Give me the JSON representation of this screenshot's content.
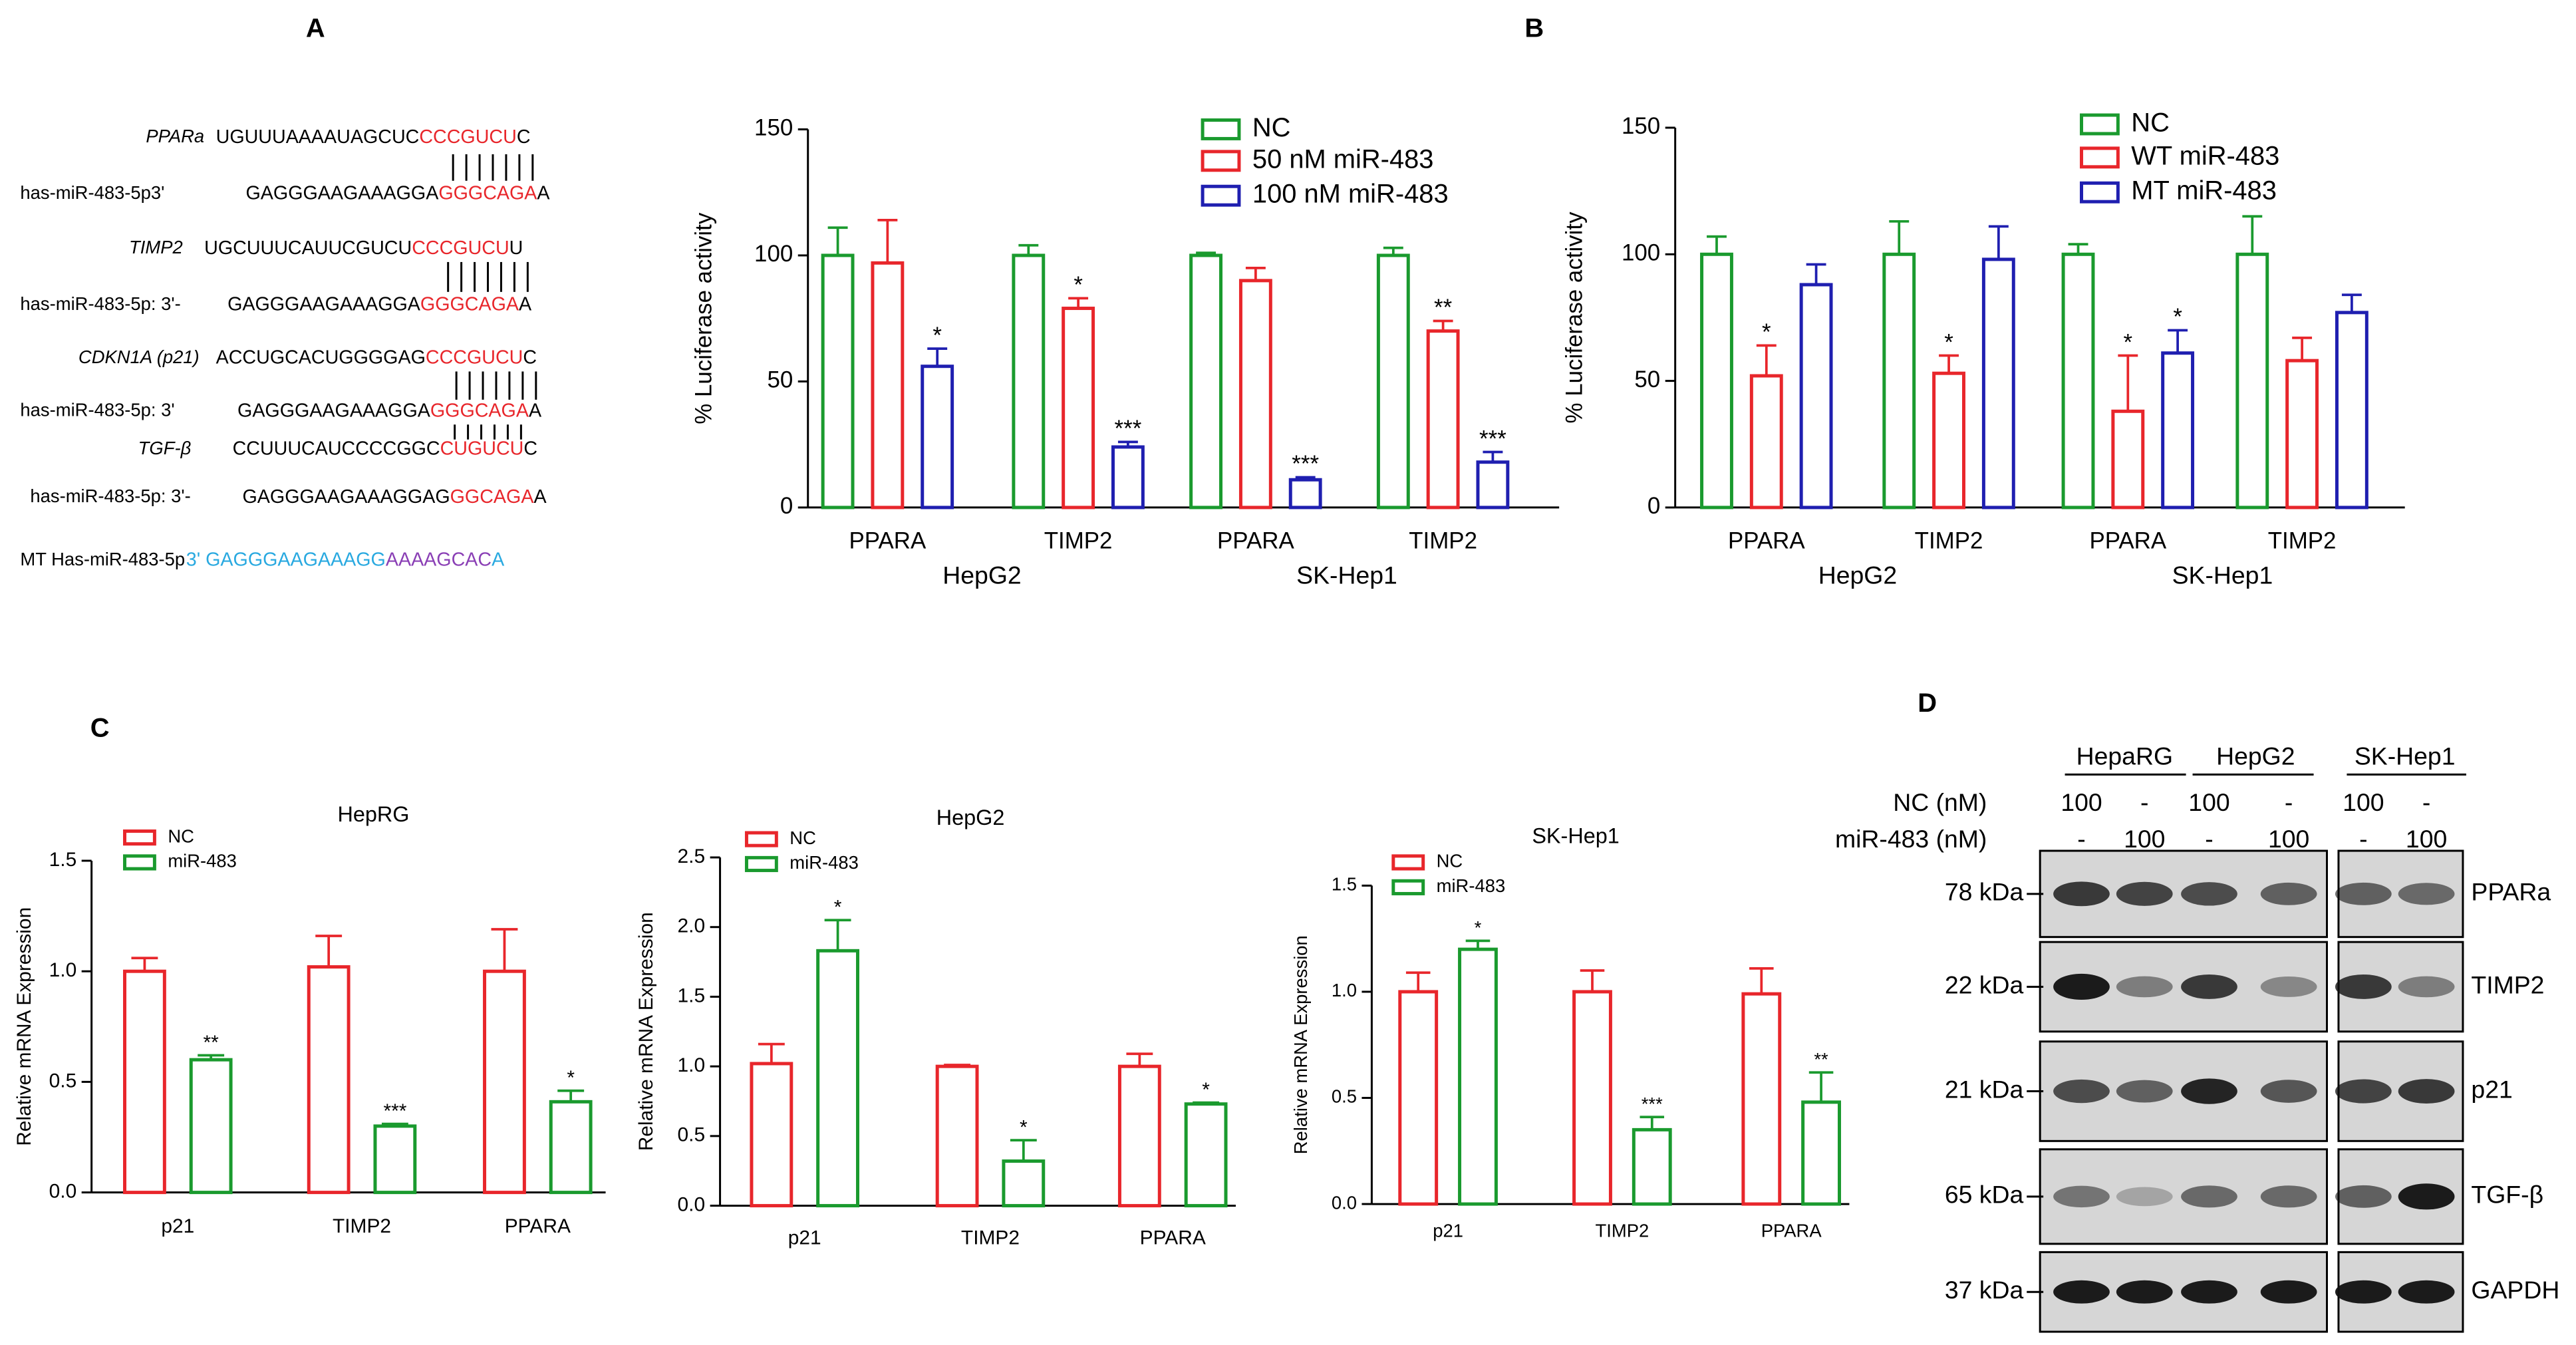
{
  "panel_labels": [
    "A",
    "B",
    "C",
    "D"
  ],
  "sequences": [
    {
      "label": "PPARa",
      "label_color": "#e8262b",
      "segments": [
        {
          "text": "UGUUUAAAAUAGCUC",
          "color": "#000000"
        },
        {
          "text": "CCCGUCU",
          "color": "#e8262b"
        },
        {
          "text": "C",
          "color": "#000000"
        }
      ]
    },
    {
      "label": "has-miR-483-5p3'",
      "label_color": "#000000",
      "segments": [
        {
          "text": "GAGGGAAGAAAGGA",
          "color": "#000000"
        },
        {
          "text": "GGGCAGA",
          "color": "#e8262b"
        },
        {
          "text": "A",
          "color": "#000000"
        }
      ]
    },
    {
      "label": "TIMP2",
      "label_color": "#e8262b",
      "segments": [
        {
          "text": "UGCUUUCAUUCGUCU",
          "color": "#000000"
        },
        {
          "text": "CCCGUCU",
          "color": "#e8262b"
        },
        {
          "text": "U",
          "color": "#000000"
        }
      ]
    },
    {
      "label": "has-miR-483-5p: 3'-",
      "label_color": "#000000",
      "segments": [
        {
          "text": "GAGGGAAGAAAGGA",
          "color": "#000000"
        },
        {
          "text": "GGGCAGA",
          "color": "#e8262b"
        },
        {
          "text": "A",
          "color": "#000000"
        }
      ]
    },
    {
      "label": "CDKN1A (p21)",
      "label_color": "#e8262b",
      "segments": [
        {
          "text": "ACCUGCACUGGGGAG",
          "color": "#000000"
        },
        {
          "text": "CCCGUCU",
          "color": "#e8262b"
        },
        {
          "text": "C",
          "color": "#000000"
        }
      ]
    },
    {
      "label": "has-miR-483-5p: 3'",
      "label_color": "#000000",
      "segments": [
        {
          "text": "GAGGGAAGAAAGGA",
          "color": "#000000"
        },
        {
          "text": "GGGCAGA",
          "color": "#e8262b"
        },
        {
          "text": "A",
          "color": "#000000"
        }
      ]
    },
    {
      "label": "TGF-β",
      "label_color": "#e8262b",
      "segments": [
        {
          "text": "CCUUUCAUCCCCGGC",
          "color": "#000000"
        },
        {
          "text": "CUGUCU",
          "color": "#e8262b"
        },
        {
          "text": "C",
          "color": "#000000"
        }
      ]
    },
    {
      "label": "has-miR-483-5p: 3'-",
      "label_color": "#000000",
      "segments": [
        {
          "text": "GAGGGAAGAAAGGAG",
          "color": "#000000"
        },
        {
          "text": "GGCAGA",
          "color": "#e8262b"
        },
        {
          "text": "A",
          "color": "#000000"
        }
      ]
    },
    {
      "label": "MT  Has-miR-483-5p",
      "label_color": "#29a9e0",
      "segments": [
        {
          "text": "3' GAGGGAAGAAAGG",
          "color": "#29a9e0"
        },
        {
          "text": "AAAAGCAC",
          "color": "#8a3fb5"
        },
        {
          "text": "A",
          "color": "#29a9e0"
        }
      ]
    }
  ],
  "chart_data": [
    {
      "type": "bar",
      "ylabel": "% Luciferase activity",
      "categories": [
        "PPARA",
        "TIMP2",
        "PPARA",
        "TIMP2"
      ],
      "groups": [
        "HepG2",
        "SK-Hep1"
      ],
      "series": [
        {
          "name": "NC",
          "color": "#1a9a2e",
          "values": [
            100,
            100,
            100,
            100
          ],
          "errors": [
            11,
            4,
            1,
            3
          ],
          "significance": [
            null,
            null,
            null,
            null
          ]
        },
        {
          "name": "50 nM miR-483",
          "color": "#e8262b",
          "values": [
            97,
            79,
            90,
            70
          ],
          "errors": [
            17,
            4,
            5,
            4
          ],
          "significance": [
            null,
            "*",
            null,
            "**"
          ]
        },
        {
          "name": "100 nM miR-483",
          "color": "#1f1fb0",
          "values": [
            56,
            24,
            11,
            18
          ],
          "errors": [
            7,
            2,
            1,
            4
          ],
          "significance": [
            "*",
            "***",
            "***",
            "***"
          ]
        }
      ],
      "ylim": [
        0,
        150
      ],
      "yticks": [
        0,
        50,
        100,
        150
      ],
      "legend": "top-right"
    },
    {
      "type": "bar",
      "ylabel": "% Luciferase activity",
      "categories": [
        "PPARA",
        "TIMP2",
        "PPARA",
        "TIMP2"
      ],
      "groups": [
        "HepG2",
        "SK-Hep1"
      ],
      "series": [
        {
          "name": "NC",
          "color": "#1a9a2e",
          "values": [
            100,
            100,
            100,
            100
          ],
          "errors": [
            7,
            13,
            4,
            15
          ],
          "significance": [
            null,
            null,
            null,
            null
          ]
        },
        {
          "name": "WT miR-483",
          "color": "#e8262b",
          "values": [
            52,
            53,
            38,
            58
          ],
          "errors": [
            12,
            7,
            22,
            9
          ],
          "significance": [
            "*",
            "*",
            "*",
            null
          ]
        },
        {
          "name": "MT miR-483",
          "color": "#1f1fb0",
          "values": [
            88,
            98,
            61,
            77
          ],
          "errors": [
            8,
            13,
            9,
            7
          ],
          "significance": [
            null,
            null,
            "*",
            null
          ]
        }
      ],
      "ylim": [
        0,
        150
      ],
      "yticks": [
        0,
        50,
        100,
        150
      ],
      "legend": "top-right"
    },
    {
      "type": "bar",
      "title": "HepRG",
      "ylabel": "Relative mRNA Expression",
      "categories": [
        "p21",
        "TIMP2",
        "PPARA"
      ],
      "series": [
        {
          "name": "NC",
          "color": "#e8262b",
          "values": [
            1.0,
            1.02,
            1.0
          ],
          "errors": [
            0.06,
            0.14,
            0.19
          ],
          "significance": [
            null,
            null,
            null
          ]
        },
        {
          "name": "miR-483",
          "color": "#1a9a2e",
          "values": [
            0.6,
            0.3,
            0.41
          ],
          "errors": [
            0.02,
            0.01,
            0.05
          ],
          "significance": [
            "**",
            "***",
            "*"
          ]
        }
      ],
      "ylim": [
        0,
        1.5
      ],
      "yticks": [
        {
          "value": 0,
          "label": "0.0"
        },
        0.5,
        {
          "value": 1,
          "label": "1.0"
        },
        1.5
      ],
      "legend": "top-left"
    },
    {
      "type": "bar",
      "title": "HepG2",
      "ylabel": "Relative mRNA Expression",
      "categories": [
        "p21",
        "TIMP2",
        "PPARA"
      ],
      "series": [
        {
          "name": "NC",
          "color": "#e8262b",
          "values": [
            1.02,
            1.0,
            1.0
          ],
          "errors": [
            0.14,
            0.01,
            0.09
          ],
          "significance": [
            null,
            null,
            null
          ]
        },
        {
          "name": "miR-483",
          "color": "#1a9a2e",
          "values": [
            1.83,
            0.32,
            0.73
          ],
          "errors": [
            0.22,
            0.15,
            0.01
          ],
          "significance": [
            "*",
            "*",
            "*"
          ]
        }
      ],
      "ylim": [
        0,
        2.5
      ],
      "yticks": [
        {
          "value": 0,
          "label": "0.0"
        },
        0.5,
        {
          "value": 1,
          "label": "1.0"
        },
        1.5,
        {
          "value": 2,
          "label": "2.0"
        },
        2.5
      ],
      "legend": "top-left"
    },
    {
      "type": "bar",
      "title": "SK-Hep1",
      "ylabel": "Relative mRNA Expression",
      "categories": [
        "p21",
        "TIMP2",
        "PPARA"
      ],
      "series": [
        {
          "name": "NC",
          "color": "#e8262b",
          "values": [
            1.0,
            1.0,
            0.99
          ],
          "errors": [
            0.09,
            0.1,
            0.12
          ],
          "significance": [
            null,
            null,
            null
          ]
        },
        {
          "name": "miR-483",
          "color": "#1a9a2e",
          "values": [
            1.2,
            0.35,
            0.48
          ],
          "errors": [
            0.04,
            0.06,
            0.14
          ],
          "significance": [
            "*",
            "***",
            "**"
          ]
        }
      ],
      "ylim": [
        0,
        1.5
      ],
      "yticks": [
        {
          "value": 0,
          "label": "0.0"
        },
        0.5,
        {
          "value": 1,
          "label": "1.0"
        },
        1.5
      ],
      "legend": "top-left"
    }
  ],
  "western_blot": {
    "groups": [
      "HepaRG",
      "HepG2",
      "SK-Hep1"
    ],
    "conditions": [
      {
        "label": "NC (nM)",
        "lanes": [
          "100",
          "-",
          "100",
          "-",
          "100",
          "-"
        ]
      },
      {
        "label": "miR-483 (nM)",
        "lanes": [
          "-",
          "100",
          "-",
          "100",
          "-",
          "100"
        ]
      }
    ],
    "rows": [
      {
        "size": "78 kDa",
        "protein": "PPARa"
      },
      {
        "size": "22 kDa",
        "protein": "TIMP2"
      },
      {
        "size": "21 kDa",
        "protein": "p21"
      },
      {
        "size": "65 kDa",
        "protein": "TGF-β"
      },
      {
        "size": "37 kDa",
        "protein": "GAPDH"
      }
    ]
  }
}
